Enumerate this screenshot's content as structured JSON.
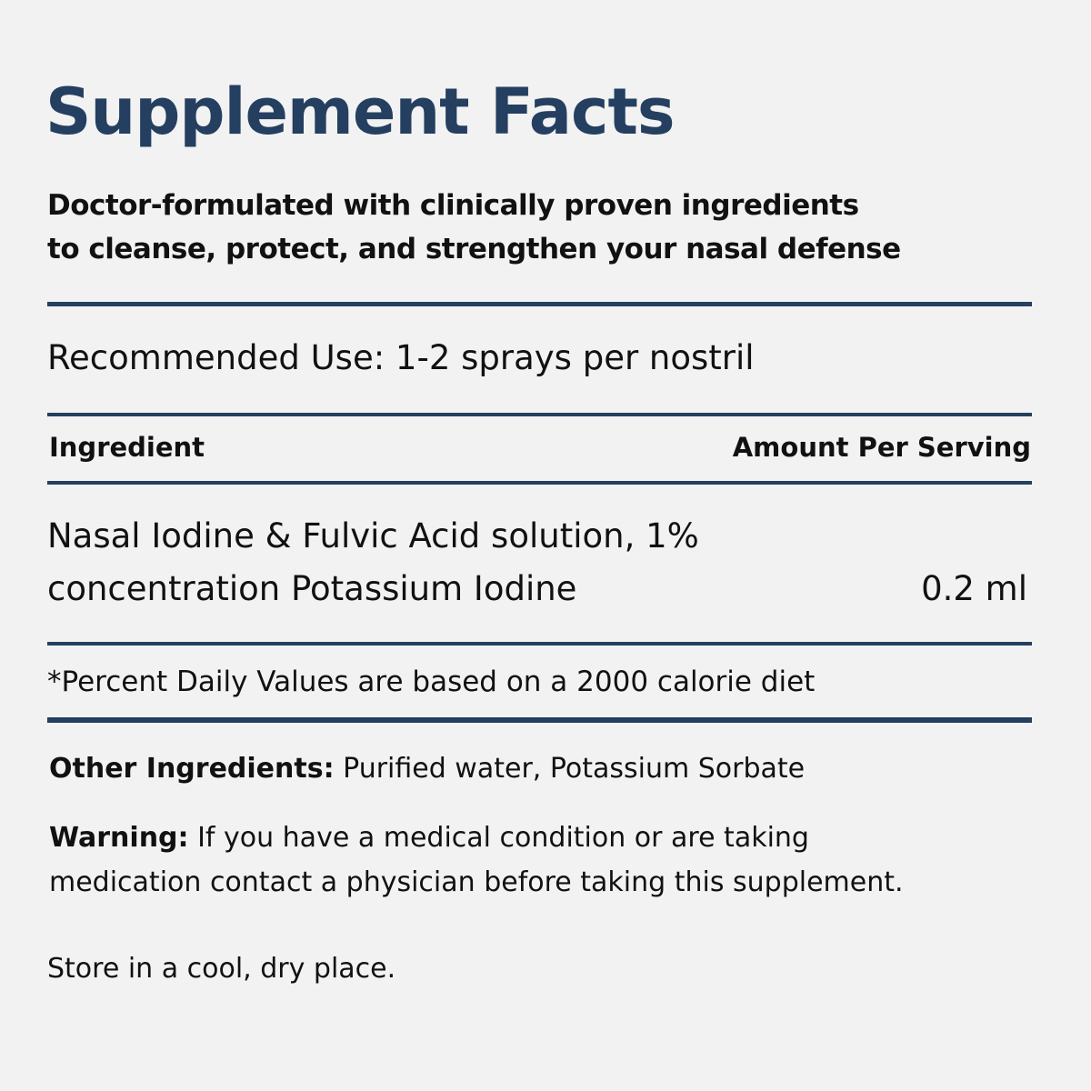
{
  "title": "Supplement Facts",
  "subtitle": [
    "Doctor-formulated with clinically proven ingredients",
    "to cleanse, protect, and strengthen your nasal defense"
  ],
  "recommended_use": "Recommended Use: 1-2 sprays per nostril",
  "table": {
    "headers": [
      "Ingredient",
      "Amount Per Serving"
    ],
    "rows": [
      {
        "ingredient": [
          "Nasal Iodine & Fulvic Acid solution, 1%",
          "concentration Potassium Iodine"
        ],
        "amount": "0.2 ml"
      }
    ]
  },
  "footnote": "*Percent Daily Values are based on a 2000 calorie diet",
  "other_ingredients": {
    "label": "Other Ingredients:",
    "value": " Purified water, Potassium Sorbate"
  },
  "warning": {
    "label": "Warning:",
    "value": " If you have a medical condition or are taking",
    "line2": "medication contact a physician before taking this supplement."
  },
  "storage": "Store in a cool, dry place.",
  "colors": {
    "accent": "#243f60",
    "background": "#f2f2f2"
  }
}
